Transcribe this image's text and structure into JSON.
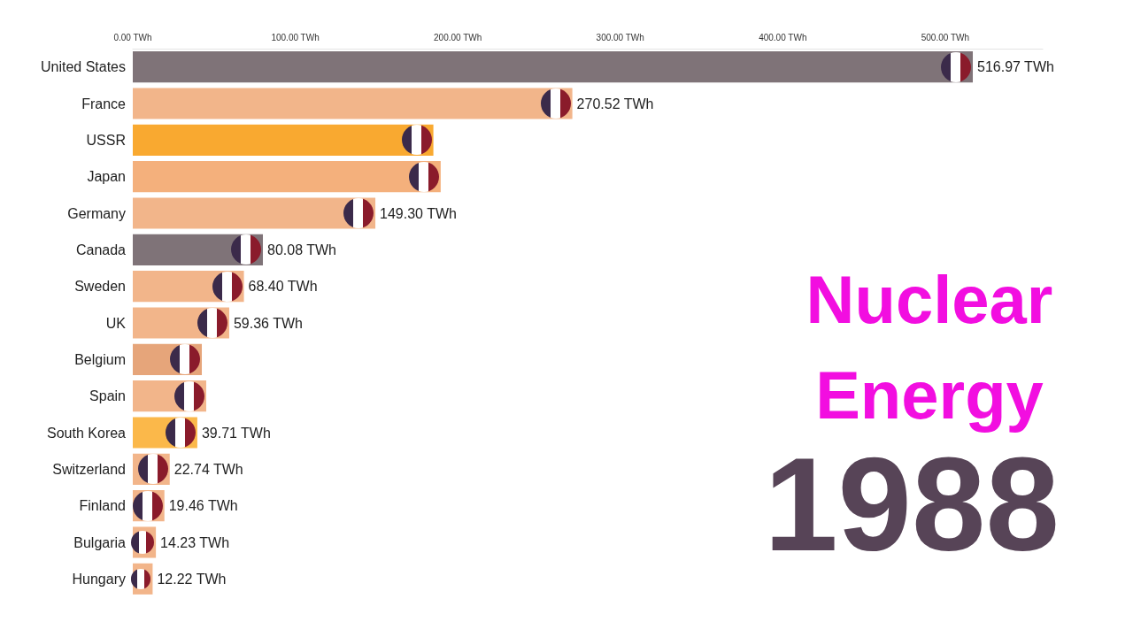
{
  "chart_data": {
    "type": "bar",
    "orientation": "horizontal",
    "title": "Nuclear Energy",
    "subtitle": "1988",
    "categories": [
      "United States",
      "France",
      "USSR",
      "Japan",
      "Germany",
      "Canada",
      "Sweden",
      "UK",
      "Belgium",
      "Spain",
      "South Korea",
      "Switzerland",
      "Finland",
      "Bulgaria",
      "Hungary"
    ],
    "values": [
      516.97,
      270.52,
      185,
      189.5,
      149.3,
      80.08,
      68.4,
      59.36,
      42.5,
      45.2,
      39.71,
      22.74,
      19.46,
      14.23,
      12.22
    ],
    "colors": [
      "#7f7378",
      "#f2b58a",
      "#f9a930",
      "#f4b07c",
      "#f2b58a",
      "#7f7378",
      "#f2b58a",
      "#f2b58a",
      "#e6a57a",
      "#f2b58a",
      "#fbb84a",
      "#f2b58a",
      "#f2b58a",
      "#f2b58a",
      "#f2b58a"
    ],
    "value_labels": [
      "516.97 TWh",
      "270.52 TWh",
      null,
      null,
      "149.30 TWh",
      "80.08 TWh",
      "68.40 TWh",
      "59.36 TWh",
      null,
      null,
      "39.71 TWh",
      "22.74 TWh",
      "19.46 TWh",
      "14.23 TWh",
      "12.22 TWh"
    ],
    "xlim": [
      0,
      560
    ],
    "xticks": [
      {
        "value": 0,
        "label": "0.00 TWh"
      },
      {
        "value": 100,
        "label": "100.00 TWh"
      },
      {
        "value": 200,
        "label": "200.00 TWh"
      },
      {
        "value": 300,
        "label": "300.00 TWh"
      },
      {
        "value": 400,
        "label": "400.00 TWh"
      },
      {
        "value": 500,
        "label": "500.00 TWh"
      }
    ],
    "grid": false
  }
}
